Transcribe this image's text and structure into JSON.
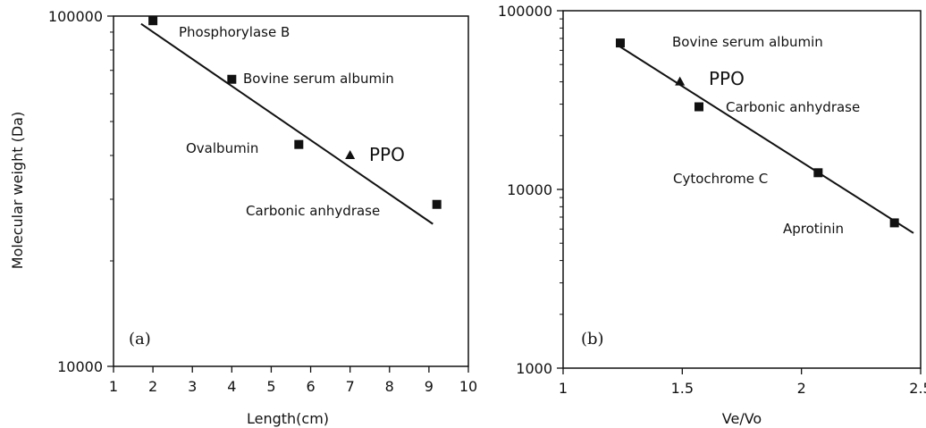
{
  "chart_data": [
    {
      "type": "scatter",
      "panel_label": "(a)",
      "xlabel": "Length(cm)",
      "ylabel": "Molecular weight (Da)",
      "xlim": [
        1,
        10
      ],
      "ylim": [
        10000,
        100000
      ],
      "y_scale": "log",
      "x_ticks": [
        "1",
        "2",
        "3",
        "4",
        "5",
        "6",
        "7",
        "8",
        "9",
        "10"
      ],
      "y_ticks": [
        "10000",
        "100000"
      ],
      "grid": false,
      "points": [
        {
          "label": "Phosphorylase B",
          "x": 2.0,
          "y": 97000,
          "marker": "square"
        },
        {
          "label": "Bovine serum albumin",
          "x": 4.0,
          "y": 66000,
          "marker": "square"
        },
        {
          "label": "Ovalbumin",
          "x": 5.7,
          "y": 43000,
          "marker": "square"
        },
        {
          "label": "PPO",
          "x": 7.0,
          "y": 40000,
          "marker": "triangle"
        },
        {
          "label": "Carbonic anhydrase",
          "x": 9.2,
          "y": 29000,
          "marker": "square"
        }
      ],
      "fit_line": {
        "x": [
          1.7,
          9.1
        ],
        "y": [
          95000,
          25500
        ]
      }
    },
    {
      "type": "scatter",
      "panel_label": "(b)",
      "xlabel": "Ve/Vo",
      "ylabel": "",
      "xlim": [
        1,
        2.5
      ],
      "ylim": [
        1000,
        100000
      ],
      "y_scale": "log",
      "x_ticks": [
        "1",
        "1.5",
        "2",
        "2.5"
      ],
      "y_ticks": [
        "1000",
        "10000",
        "100000"
      ],
      "grid": false,
      "points": [
        {
          "label": "Bovine serum albumin",
          "x": 1.24,
          "y": 66000,
          "marker": "square"
        },
        {
          "label": "PPO",
          "x": 1.49,
          "y": 40000,
          "marker": "triangle"
        },
        {
          "label": "Carbonic anhydrase",
          "x": 1.57,
          "y": 29000,
          "marker": "square"
        },
        {
          "label": "Cytochrome C",
          "x": 2.07,
          "y": 12400,
          "marker": "square"
        },
        {
          "label": "Aprotinin",
          "x": 2.39,
          "y": 6500,
          "marker": "square"
        }
      ],
      "fit_line": {
        "x": [
          1.23,
          2.47
        ],
        "y": [
          64000,
          5700
        ]
      }
    }
  ]
}
